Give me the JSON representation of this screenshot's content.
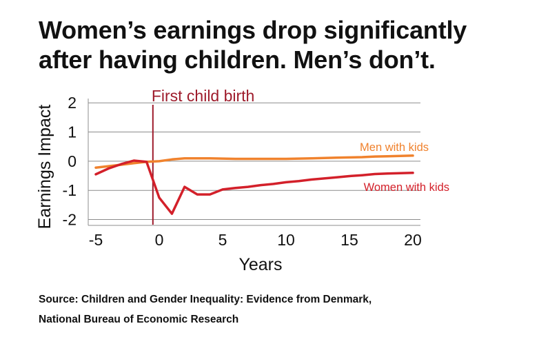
{
  "title_lines": [
    "Women’s earnings drop significantly",
    "after having children. Men’s don’t."
  ],
  "source_lines": [
    "Source: Children and Gender Inequality: Evidence from Denmark,",
    "National Bureau of Economic Research"
  ],
  "colors": {
    "men": "#F0822D",
    "women": "#D3202A",
    "birth_line": "#9E1B2B",
    "grid": "#8c8c8c",
    "text": "#111111"
  },
  "chart_data": {
    "type": "line",
    "title": "",
    "xlabel": "Years",
    "ylabel": "Earnings Impact",
    "xlim": [
      -5.6,
      20.6
    ],
    "ylim": [
      -2.2,
      2.1
    ],
    "x_ticks": [
      -5,
      0,
      5,
      10,
      15,
      20
    ],
    "x_tick_labels": [
      "-5",
      "0",
      "5",
      "10",
      "15",
      "20"
    ],
    "y_ticks": [
      2,
      1,
      0,
      -1,
      -2
    ],
    "y_tick_labels": [
      "2",
      "1",
      "0",
      "-1",
      "-2"
    ],
    "grid": "horizontal",
    "annotation": {
      "label": "First child birth",
      "x": -0.5
    },
    "series": [
      {
        "name": "Men with kids",
        "color": "#F0822D",
        "label_position": "above-line-right",
        "x": [
          -5,
          -4,
          -3,
          -2,
          -1,
          0,
          1,
          2,
          3,
          4,
          5,
          6,
          7,
          8,
          9,
          10,
          11,
          12,
          13,
          14,
          15,
          16,
          17,
          18,
          19,
          20
        ],
        "y": [
          -0.22,
          -0.17,
          -0.12,
          -0.07,
          -0.02,
          0.0,
          0.06,
          0.1,
          0.1,
          0.1,
          0.09,
          0.08,
          0.08,
          0.08,
          0.08,
          0.08,
          0.09,
          0.1,
          0.11,
          0.12,
          0.13,
          0.14,
          0.16,
          0.17,
          0.18,
          0.19
        ]
      },
      {
        "name": "Women with kids",
        "color": "#D3202A",
        "label_position": "below-line-right",
        "x": [
          -5,
          -4,
          -3,
          -2,
          -1,
          0,
          1,
          2,
          3,
          4,
          5,
          6,
          7,
          8,
          9,
          10,
          11,
          12,
          13,
          14,
          15,
          16,
          17,
          18,
          19,
          20
        ],
        "y": [
          -0.45,
          -0.25,
          -0.1,
          0.02,
          -0.02,
          -1.25,
          -1.8,
          -0.88,
          -1.14,
          -1.14,
          -0.97,
          -0.92,
          -0.88,
          -0.82,
          -0.78,
          -0.72,
          -0.68,
          -0.63,
          -0.59,
          -0.55,
          -0.51,
          -0.48,
          -0.44,
          -0.42,
          -0.41,
          -0.4
        ]
      }
    ]
  }
}
